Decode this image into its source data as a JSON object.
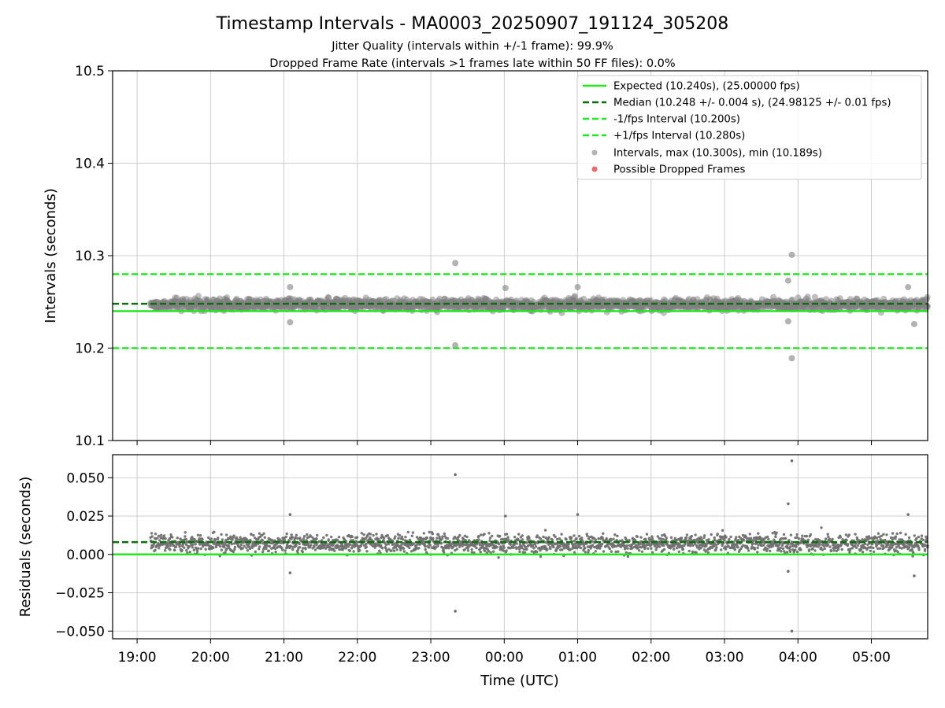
{
  "chart_data": {
    "type": "scatter",
    "title": "Timestamp Intervals - MA0003_20250907_191124_305208",
    "subtitle_lines": [
      "Jitter Quality (intervals within +/-1 frame): 99.9%",
      "Dropped Frame Rate (intervals >1 frames late within 50 FF files): 0.0%"
    ],
    "xlabel": "Time (UTC)",
    "x_ticks": [
      "19:00",
      "20:00",
      "21:00",
      "22:00",
      "23:00",
      "00:00",
      "01:00",
      "02:00",
      "03:00",
      "04:00",
      "05:00"
    ],
    "x_range": [
      "2025-09-07 18:40",
      "2025-09-08 05:46"
    ],
    "data_start": "2025-09-07 19:11",
    "data_end": "2025-09-08 05:46",
    "grid": true,
    "panels": [
      {
        "name": "intervals",
        "ylabel": "Intervals (seconds)",
        "ylim": [
          10.1,
          10.5
        ],
        "y_ticks": [
          "10.1",
          "10.2",
          "10.3",
          "10.4",
          "10.5"
        ],
        "lines": [
          {
            "label": "Expected (10.240s), (25.00000 fps)",
            "y": 10.24,
            "style": "solid",
            "color": "#1fe81f"
          },
          {
            "label": "Median (10.248 +/- 0.004 s), (24.98125 +/- 0.01 fps)",
            "y": 10.248,
            "style": "dashed",
            "color": "#0a6e0a"
          },
          {
            "label": "-1/fps Interval (10.200s)",
            "y": 10.2,
            "style": "dashed",
            "color": "#1fe81f"
          },
          {
            "label": "+1/fps Interval (10.280s)",
            "y": 10.28,
            "style": "dashed",
            "color": "#1fe81f"
          }
        ],
        "scatter_series": [
          {
            "label": "Intervals, max (10.300s), min (10.189s)",
            "color": "#808080",
            "max": 10.3,
            "min": 10.189,
            "typical_center": 10.247,
            "typical_spread": 0.005
          },
          {
            "label": "Possible Dropped Frames",
            "color": "#ee4444",
            "points": []
          }
        ],
        "outliers": [
          {
            "t": "2025-09-07 21:05",
            "y": 10.266
          },
          {
            "t": "2025-09-07 21:05",
            "y": 10.228
          },
          {
            "t": "2025-09-07 23:20",
            "y": 10.292
          },
          {
            "t": "2025-09-07 23:20",
            "y": 10.203
          },
          {
            "t": "2025-09-08 00:01",
            "y": 10.265
          },
          {
            "t": "2025-09-08 01:00",
            "y": 10.266
          },
          {
            "t": "2025-09-08 03:52",
            "y": 10.273
          },
          {
            "t": "2025-09-08 03:52",
            "y": 10.229
          },
          {
            "t": "2025-09-08 03:55",
            "y": 10.301
          },
          {
            "t": "2025-09-08 03:55",
            "y": 10.189
          },
          {
            "t": "2025-09-08 05:30",
            "y": 10.266
          },
          {
            "t": "2025-09-08 05:35",
            "y": 10.226
          }
        ]
      },
      {
        "name": "residuals",
        "ylabel": "Residuals (seconds)",
        "ylim": [
          -0.055,
          0.065
        ],
        "y_ticks": [
          "−0.050",
          "−0.025",
          "0.000",
          "0.025",
          "0.050"
        ],
        "lines": [
          {
            "y": 0.0,
            "style": "solid",
            "color": "#1fe81f"
          },
          {
            "y": 0.008,
            "style": "dashed",
            "color": "#0a6e0a"
          }
        ],
        "scatter_series": [
          {
            "color": "#707070",
            "typical_center": 0.007,
            "typical_spread": 0.005
          }
        ],
        "outliers": [
          {
            "t": "2025-09-07 21:05",
            "y": 0.026
          },
          {
            "t": "2025-09-07 21:05",
            "y": -0.012
          },
          {
            "t": "2025-09-07 23:20",
            "y": 0.052
          },
          {
            "t": "2025-09-07 23:20",
            "y": -0.037
          },
          {
            "t": "2025-09-08 00:01",
            "y": 0.025
          },
          {
            "t": "2025-09-08 01:00",
            "y": 0.026
          },
          {
            "t": "2025-09-08 03:52",
            "y": 0.033
          },
          {
            "t": "2025-09-08 03:52",
            "y": -0.011
          },
          {
            "t": "2025-09-08 03:55",
            "y": 0.061
          },
          {
            "t": "2025-09-08 03:55",
            "y": -0.05
          },
          {
            "t": "2025-09-08 05:30",
            "y": 0.026
          },
          {
            "t": "2025-09-08 05:35",
            "y": -0.014
          }
        ]
      }
    ],
    "legend": {
      "placement": "upper right",
      "panel": "intervals"
    }
  }
}
